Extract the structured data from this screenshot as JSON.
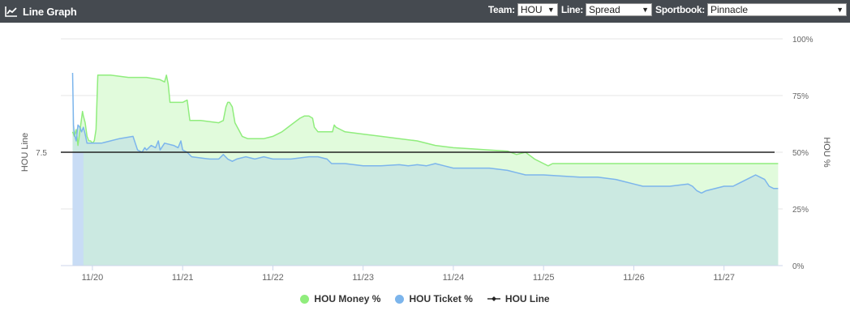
{
  "header": {
    "title": "Line Graph",
    "icon": "line-chart-icon",
    "team_label": "Team:",
    "team_value": "HOU",
    "line_label": "Line:",
    "line_value": "Spread",
    "sportsbook_label": "Sportbook:",
    "sportsbook_value": "Pinnacle"
  },
  "chart_data": {
    "type": "area",
    "x_tick_labels": [
      "11/20",
      "11/21",
      "11/22",
      "11/23",
      "11/24",
      "11/25",
      "11/26",
      "11/27"
    ],
    "x_range": [
      19.65,
      27.65
    ],
    "y_left_label": "HOU Line",
    "y_left_tick": "7.5",
    "y_right_label": "HOU %",
    "y_right_ticks": [
      "0%",
      "25%",
      "50%",
      "75%",
      "100%"
    ],
    "y_right_range": [
      0,
      100
    ],
    "grid": true,
    "legend_position": "bottom",
    "series": [
      {
        "name": "HOU Money %",
        "color": "#90ed7d",
        "fill": "#e1fbdc",
        "points": [
          [
            19.78,
            59
          ],
          [
            19.8,
            57
          ],
          [
            19.82,
            60
          ],
          [
            19.84,
            53
          ],
          [
            19.85,
            56
          ],
          [
            19.87,
            62
          ],
          [
            19.89,
            68
          ],
          [
            19.9,
            66
          ],
          [
            19.92,
            63
          ],
          [
            19.94,
            57
          ],
          [
            19.96,
            55
          ],
          [
            19.98,
            55
          ],
          [
            20.0,
            54
          ],
          [
            20.02,
            55
          ],
          [
            20.04,
            60
          ],
          [
            20.06,
            84
          ],
          [
            20.2,
            84
          ],
          [
            20.4,
            83
          ],
          [
            20.6,
            83
          ],
          [
            20.75,
            82
          ],
          [
            20.8,
            81
          ],
          [
            20.82,
            84
          ],
          [
            20.84,
            80
          ],
          [
            20.86,
            72
          ],
          [
            20.9,
            72
          ],
          [
            21.0,
            72
          ],
          [
            21.05,
            73
          ],
          [
            21.08,
            64
          ],
          [
            21.2,
            64
          ],
          [
            21.4,
            63
          ],
          [
            21.45,
            64
          ],
          [
            21.48,
            70
          ],
          [
            21.5,
            72
          ],
          [
            21.52,
            72
          ],
          [
            21.55,
            70
          ],
          [
            21.58,
            63
          ],
          [
            21.62,
            60
          ],
          [
            21.66,
            57
          ],
          [
            21.72,
            56
          ],
          [
            21.8,
            56
          ],
          [
            21.9,
            56
          ],
          [
            22.0,
            57
          ],
          [
            22.1,
            59
          ],
          [
            22.2,
            62
          ],
          [
            22.3,
            65
          ],
          [
            22.35,
            66
          ],
          [
            22.4,
            66
          ],
          [
            22.44,
            65
          ],
          [
            22.46,
            61
          ],
          [
            22.5,
            59
          ],
          [
            22.6,
            59
          ],
          [
            22.66,
            59
          ],
          [
            22.68,
            62
          ],
          [
            22.7,
            61
          ],
          [
            22.75,
            60
          ],
          [
            22.8,
            59
          ],
          [
            23.0,
            58
          ],
          [
            23.2,
            57
          ],
          [
            23.4,
            56
          ],
          [
            23.6,
            55
          ],
          [
            23.8,
            53
          ],
          [
            24.0,
            52
          ],
          [
            24.2,
            51.5
          ],
          [
            24.4,
            51
          ],
          [
            24.6,
            50.5
          ],
          [
            24.7,
            49
          ],
          [
            24.8,
            50
          ],
          [
            24.9,
            47
          ],
          [
            25.0,
            45
          ],
          [
            25.05,
            44
          ],
          [
            25.1,
            45
          ],
          [
            25.3,
            45
          ],
          [
            25.6,
            45
          ],
          [
            26.0,
            45
          ],
          [
            26.5,
            45
          ],
          [
            27.0,
            45
          ],
          [
            27.6,
            45
          ]
        ]
      },
      {
        "name": "HOU Ticket %",
        "color": "#7cb5ec",
        "fill": "#c9e8e0",
        "points": [
          [
            19.78,
            85
          ],
          [
            19.79,
            62
          ],
          [
            19.8,
            58
          ],
          [
            19.82,
            55
          ],
          [
            19.84,
            62
          ],
          [
            19.86,
            61
          ],
          [
            19.88,
            59
          ],
          [
            19.9,
            61
          ],
          [
            19.92,
            58
          ],
          [
            19.94,
            54
          ],
          [
            20.0,
            54
          ],
          [
            20.1,
            54
          ],
          [
            20.3,
            56
          ],
          [
            20.45,
            57
          ],
          [
            20.5,
            51
          ],
          [
            20.55,
            50
          ],
          [
            20.58,
            52
          ],
          [
            20.6,
            51
          ],
          [
            20.65,
            53
          ],
          [
            20.7,
            52
          ],
          [
            20.73,
            55
          ],
          [
            20.75,
            51
          ],
          [
            20.8,
            54
          ],
          [
            20.9,
            53
          ],
          [
            20.95,
            52
          ],
          [
            20.98,
            55
          ],
          [
            21.0,
            51
          ],
          [
            21.05,
            50
          ],
          [
            21.1,
            48
          ],
          [
            21.3,
            47
          ],
          [
            21.4,
            47
          ],
          [
            21.45,
            49
          ],
          [
            21.5,
            47
          ],
          [
            21.55,
            46
          ],
          [
            21.6,
            47
          ],
          [
            21.7,
            48
          ],
          [
            21.8,
            47
          ],
          [
            21.9,
            48
          ],
          [
            22.0,
            47
          ],
          [
            22.2,
            47
          ],
          [
            22.4,
            48
          ],
          [
            22.5,
            48
          ],
          [
            22.6,
            47
          ],
          [
            22.65,
            45
          ],
          [
            22.8,
            45
          ],
          [
            23.0,
            44
          ],
          [
            23.2,
            44
          ],
          [
            23.4,
            44.5
          ],
          [
            23.5,
            44
          ],
          [
            23.6,
            44.5
          ],
          [
            23.7,
            44
          ],
          [
            23.8,
            45
          ],
          [
            23.9,
            44
          ],
          [
            24.0,
            43
          ],
          [
            24.2,
            43
          ],
          [
            24.4,
            43
          ],
          [
            24.6,
            42
          ],
          [
            24.7,
            41
          ],
          [
            24.8,
            40
          ],
          [
            25.0,
            40
          ],
          [
            25.2,
            39.5
          ],
          [
            25.4,
            39
          ],
          [
            25.6,
            39
          ],
          [
            25.8,
            38
          ],
          [
            26.0,
            36
          ],
          [
            26.1,
            35
          ],
          [
            26.2,
            35
          ],
          [
            26.4,
            35
          ],
          [
            26.6,
            36
          ],
          [
            26.65,
            35
          ],
          [
            26.7,
            33
          ],
          [
            26.75,
            32
          ],
          [
            26.8,
            33
          ],
          [
            27.0,
            35
          ],
          [
            27.1,
            35
          ],
          [
            27.15,
            36
          ],
          [
            27.2,
            37
          ],
          [
            27.3,
            39
          ],
          [
            27.35,
            40
          ],
          [
            27.4,
            39
          ],
          [
            27.45,
            38
          ],
          [
            27.5,
            35
          ],
          [
            27.55,
            34
          ],
          [
            27.6,
            34
          ]
        ]
      },
      {
        "name": "HOU Line",
        "color": "#222222",
        "value": 7.5
      }
    ]
  }
}
